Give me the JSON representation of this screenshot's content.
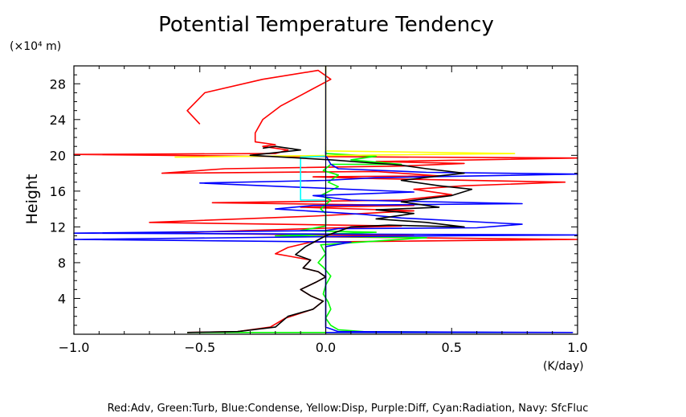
{
  "chart_data": {
    "type": "line",
    "title": "Potential Temperature Tendency",
    "y_unit": "(×10⁴ m)",
    "ylabel": "Height",
    "x_unit": "(K/day)",
    "xlim": [
      -1.0,
      1.0
    ],
    "ylim": [
      0,
      30
    ],
    "x_ticks": [
      -1.0,
      -0.5,
      0.0,
      0.5,
      1.0
    ],
    "x_tick_labels": [
      "−1.0",
      "−0.5",
      "0.0",
      "0.5",
      "1.0"
    ],
    "y_ticks": [
      4,
      8,
      12,
      16,
      20,
      24,
      28
    ],
    "y_tick_labels": [
      "4",
      "8",
      "12",
      "16",
      "20",
      "24",
      "28"
    ],
    "legend_text": "Red:Adv, Green:Turb, Blue:Condense, Yellow:Disp, Purple:Diff, Cyan:Radiation, Navy: SfcFluc",
    "series": [
      {
        "name": "Adv",
        "color": "#ff0000",
        "points": [
          [
            -0.55,
            0.2
          ],
          [
            -0.35,
            0.3
          ],
          [
            -0.22,
            0.8
          ],
          [
            -0.16,
            1.8
          ],
          [
            -0.05,
            2.8
          ],
          [
            -0.01,
            3.7
          ],
          [
            -0.06,
            4.3
          ],
          [
            -0.1,
            5.0
          ],
          [
            -0.04,
            5.8
          ],
          [
            0.0,
            6.4
          ],
          [
            -0.03,
            7.0
          ],
          [
            -0.09,
            7.4
          ],
          [
            -0.06,
            8.3
          ],
          [
            -0.14,
            8.7
          ],
          [
            -0.2,
            9.0
          ],
          [
            -0.15,
            9.7
          ],
          [
            -0.06,
            10.3
          ],
          [
            1.0,
            10.6
          ],
          [
            -0.06,
            10.9
          ],
          [
            0.35,
            11.0
          ],
          [
            -0.65,
            11.3
          ],
          [
            0.05,
            11.9
          ],
          [
            0.3,
            12.1
          ],
          [
            -0.7,
            12.5
          ],
          [
            -0.05,
            13.2
          ],
          [
            0.15,
            13.5
          ],
          [
            0.35,
            13.8
          ],
          [
            -0.1,
            14.2
          ],
          [
            0.35,
            14.4
          ],
          [
            -0.45,
            14.7
          ],
          [
            0.3,
            15.0
          ],
          [
            0.5,
            15.6
          ],
          [
            0.35,
            16.2
          ],
          [
            0.55,
            16.6
          ],
          [
            0.95,
            17.0
          ],
          [
            0.2,
            17.4
          ],
          [
            -0.05,
            17.6
          ],
          [
            0.45,
            17.7
          ],
          [
            0.2,
            18.2
          ],
          [
            -0.65,
            18.0
          ],
          [
            -0.4,
            18.5
          ],
          [
            0.3,
            18.8
          ],
          [
            0.55,
            19.1
          ],
          [
            0.2,
            19.3
          ],
          [
            1.0,
            19.7
          ],
          [
            -0.3,
            19.9
          ],
          [
            -1.0,
            20.1
          ],
          [
            -0.2,
            20.2
          ],
          [
            -0.15,
            20.6
          ],
          [
            -0.25,
            21.0
          ],
          [
            -0.2,
            21.2
          ],
          [
            -0.28,
            21.5
          ],
          [
            -0.28,
            22.5
          ],
          [
            -0.25,
            24.0
          ],
          [
            -0.18,
            25.5
          ],
          [
            -0.08,
            27.0
          ],
          [
            0.02,
            28.5
          ],
          [
            -0.03,
            29.5
          ],
          [
            -0.25,
            28.5
          ],
          [
            -0.48,
            27.0
          ],
          [
            -0.55,
            25.0
          ],
          [
            -0.5,
            23.5
          ]
        ]
      },
      {
        "name": "Turb",
        "color": "#00ff00",
        "points": [
          [
            -0.55,
            0.2
          ],
          [
            0.7,
            0.2
          ],
          [
            0.15,
            0.3
          ],
          [
            0.05,
            0.5
          ],
          [
            0.02,
            1.0
          ],
          [
            0.0,
            1.8
          ],
          [
            0.02,
            2.8
          ],
          [
            0.01,
            3.6
          ],
          [
            -0.01,
            4.5
          ],
          [
            0.0,
            5.5
          ],
          [
            0.02,
            6.5
          ],
          [
            -0.01,
            7.5
          ],
          [
            -0.03,
            8.0
          ],
          [
            0.0,
            9.0
          ],
          [
            -0.02,
            10.0
          ],
          [
            0.4,
            10.8
          ],
          [
            -0.2,
            11.0
          ],
          [
            0.2,
            11.4
          ],
          [
            -0.1,
            11.6
          ],
          [
            0.0,
            12.1
          ],
          [
            0.0,
            13.5
          ],
          [
            -0.02,
            14.0
          ],
          [
            0.02,
            15.0
          ],
          [
            -0.02,
            15.5
          ],
          [
            0.05,
            16.5
          ],
          [
            0.01,
            17.0
          ],
          [
            0.05,
            17.8
          ],
          [
            -0.01,
            18.3
          ],
          [
            0.02,
            19.0
          ],
          [
            0.3,
            19.0
          ],
          [
            0.1,
            19.5
          ],
          [
            0.2,
            19.9
          ],
          [
            0.0,
            20.2
          ],
          [
            0.0,
            21.0
          ]
        ]
      },
      {
        "name": "Condense",
        "color": "#0000ff",
        "points": [
          [
            0.0,
            0.2
          ],
          [
            0.98,
            0.2
          ],
          [
            0.05,
            0.3
          ],
          [
            0.0,
            0.8
          ],
          [
            0.0,
            9.8
          ],
          [
            0.1,
            10.3
          ],
          [
            -1.0,
            10.6
          ],
          [
            0.0,
            10.9
          ],
          [
            1.0,
            11.1
          ],
          [
            -1.0,
            11.3
          ],
          [
            0.0,
            11.6
          ],
          [
            0.05,
            11.8
          ],
          [
            0.6,
            11.9
          ],
          [
            0.78,
            12.3
          ],
          [
            0.3,
            13.0
          ],
          [
            0.15,
            13.4
          ],
          [
            -0.2,
            14.0
          ],
          [
            -0.05,
            14.4
          ],
          [
            0.78,
            14.6
          ],
          [
            0.1,
            15.0
          ],
          [
            -0.05,
            15.5
          ],
          [
            0.35,
            15.9
          ],
          [
            -0.5,
            16.9
          ],
          [
            0.0,
            17.2
          ],
          [
            0.2,
            17.5
          ],
          [
            1.0,
            17.9
          ],
          [
            0.4,
            18.1
          ],
          [
            0.05,
            18.5
          ],
          [
            0.02,
            19.0
          ],
          [
            0.0,
            20.0
          ],
          [
            0.0,
            30.0
          ]
        ]
      },
      {
        "name": "Disp",
        "color": "#ffff00",
        "points": [
          [
            -0.6,
            19.8
          ],
          [
            0.75,
            20.2
          ],
          [
            0.0,
            20.5
          ],
          [
            0.0,
            21.0
          ],
          [
            0.0,
            30.0
          ]
        ]
      },
      {
        "name": "Radiation",
        "color": "#00ffff",
        "points": [
          [
            0.0,
            15.0
          ],
          [
            -0.1,
            15.0
          ],
          [
            -0.1,
            19.8
          ],
          [
            0.0,
            19.9
          ]
        ]
      },
      {
        "name": "Diff",
        "color": "#000000",
        "points": [
          [
            -0.55,
            0.2
          ],
          [
            -0.35,
            0.3
          ],
          [
            -0.2,
            0.8
          ],
          [
            -0.15,
            2.0
          ],
          [
            -0.05,
            2.8
          ],
          [
            -0.01,
            3.7
          ],
          [
            -0.06,
            4.3
          ],
          [
            -0.1,
            5.0
          ],
          [
            -0.04,
            5.8
          ],
          [
            0.0,
            6.4
          ],
          [
            -0.03,
            7.0
          ],
          [
            -0.09,
            7.4
          ],
          [
            -0.06,
            8.3
          ],
          [
            -0.12,
            8.9
          ],
          [
            -0.08,
            9.8
          ],
          [
            0.0,
            11.0
          ],
          [
            0.1,
            12.0
          ],
          [
            0.25,
            12.2
          ],
          [
            0.55,
            12.0
          ],
          [
            0.4,
            12.5
          ],
          [
            0.2,
            12.9
          ],
          [
            0.35,
            13.5
          ],
          [
            0.2,
            13.9
          ],
          [
            0.45,
            14.2
          ],
          [
            0.3,
            14.8
          ],
          [
            0.5,
            15.5
          ],
          [
            0.58,
            16.2
          ],
          [
            0.45,
            16.6
          ],
          [
            0.3,
            17.2
          ],
          [
            0.45,
            17.7
          ],
          [
            0.55,
            18.0
          ],
          [
            0.4,
            18.5
          ],
          [
            0.3,
            18.9
          ],
          [
            0.02,
            19.5
          ],
          [
            -0.3,
            20.0
          ],
          [
            -0.1,
            20.6
          ],
          [
            -0.2,
            21.0
          ],
          [
            -0.25,
            20.8
          ]
        ]
      }
    ]
  }
}
